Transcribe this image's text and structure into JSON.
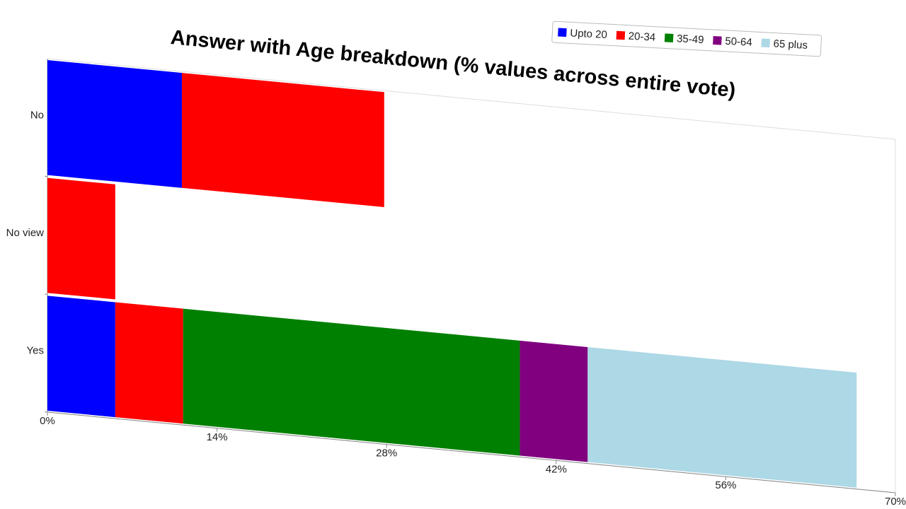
{
  "chart_data": {
    "type": "bar",
    "orientation": "horizontal",
    "stacked": true,
    "title": "Answer with Age breakdown (% values across entire vote)",
    "categories": [
      "No",
      "No view",
      "Yes"
    ],
    "series": [
      {
        "name": "Upto 20",
        "color": "#0000ff",
        "values": [
          11.1,
          0,
          5.6
        ]
      },
      {
        "name": "20-34",
        "color": "#ff0000",
        "values": [
          16.7,
          5.6,
          5.6
        ]
      },
      {
        "name": "35-49",
        "color": "#008000",
        "values": [
          0,
          0,
          27.8
        ]
      },
      {
        "name": "50-64",
        "color": "#800080",
        "values": [
          0,
          0,
          5.6
        ]
      },
      {
        "name": "65 plus",
        "color": "#add8e6",
        "values": [
          0,
          0,
          22.2
        ]
      }
    ],
    "xlim": [
      0,
      70
    ],
    "xticks": [
      {
        "value": 0,
        "label": "0%"
      },
      {
        "value": 14,
        "label": "14%"
      },
      {
        "value": 28,
        "label": "28%"
      },
      {
        "value": 42,
        "label": "42%"
      },
      {
        "value": 56,
        "label": "56%"
      },
      {
        "value": 70,
        "label": "70%"
      }
    ],
    "legend": "top-right"
  }
}
